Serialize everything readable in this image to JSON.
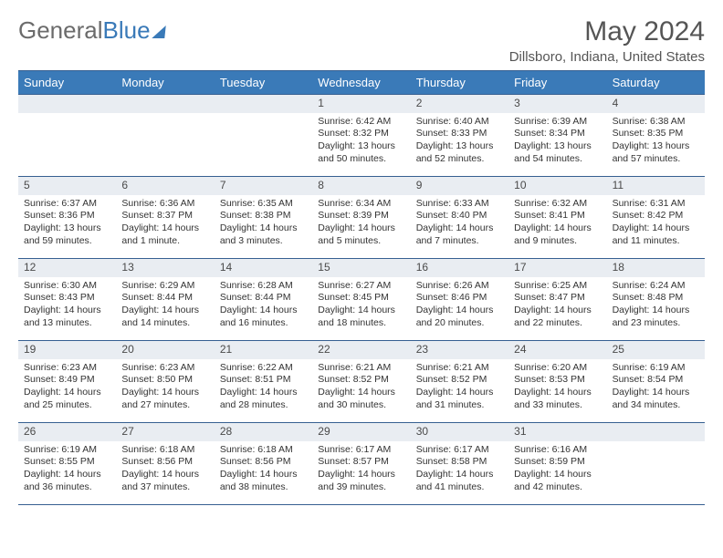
{
  "brand": {
    "part1": "General",
    "part2": "Blue"
  },
  "title": "May 2024",
  "location": "Dillsboro, Indiana, United States",
  "colors": {
    "header_bg": "#3a7ab8",
    "header_text": "#ffffff",
    "border": "#365f91",
    "daynum_bg": "#e9edf2",
    "text": "#333333",
    "background": "#ffffff"
  },
  "daynames": [
    "Sunday",
    "Monday",
    "Tuesday",
    "Wednesday",
    "Thursday",
    "Friday",
    "Saturday"
  ],
  "weeks": [
    [
      null,
      null,
      null,
      {
        "n": "1",
        "sr": "Sunrise: 6:42 AM",
        "ss": "Sunset: 8:32 PM",
        "dl": "Daylight: 13 hours and 50 minutes."
      },
      {
        "n": "2",
        "sr": "Sunrise: 6:40 AM",
        "ss": "Sunset: 8:33 PM",
        "dl": "Daylight: 13 hours and 52 minutes."
      },
      {
        "n": "3",
        "sr": "Sunrise: 6:39 AM",
        "ss": "Sunset: 8:34 PM",
        "dl": "Daylight: 13 hours and 54 minutes."
      },
      {
        "n": "4",
        "sr": "Sunrise: 6:38 AM",
        "ss": "Sunset: 8:35 PM",
        "dl": "Daylight: 13 hours and 57 minutes."
      }
    ],
    [
      {
        "n": "5",
        "sr": "Sunrise: 6:37 AM",
        "ss": "Sunset: 8:36 PM",
        "dl": "Daylight: 13 hours and 59 minutes."
      },
      {
        "n": "6",
        "sr": "Sunrise: 6:36 AM",
        "ss": "Sunset: 8:37 PM",
        "dl": "Daylight: 14 hours and 1 minute."
      },
      {
        "n": "7",
        "sr": "Sunrise: 6:35 AM",
        "ss": "Sunset: 8:38 PM",
        "dl": "Daylight: 14 hours and 3 minutes."
      },
      {
        "n": "8",
        "sr": "Sunrise: 6:34 AM",
        "ss": "Sunset: 8:39 PM",
        "dl": "Daylight: 14 hours and 5 minutes."
      },
      {
        "n": "9",
        "sr": "Sunrise: 6:33 AM",
        "ss": "Sunset: 8:40 PM",
        "dl": "Daylight: 14 hours and 7 minutes."
      },
      {
        "n": "10",
        "sr": "Sunrise: 6:32 AM",
        "ss": "Sunset: 8:41 PM",
        "dl": "Daylight: 14 hours and 9 minutes."
      },
      {
        "n": "11",
        "sr": "Sunrise: 6:31 AM",
        "ss": "Sunset: 8:42 PM",
        "dl": "Daylight: 14 hours and 11 minutes."
      }
    ],
    [
      {
        "n": "12",
        "sr": "Sunrise: 6:30 AM",
        "ss": "Sunset: 8:43 PM",
        "dl": "Daylight: 14 hours and 13 minutes."
      },
      {
        "n": "13",
        "sr": "Sunrise: 6:29 AM",
        "ss": "Sunset: 8:44 PM",
        "dl": "Daylight: 14 hours and 14 minutes."
      },
      {
        "n": "14",
        "sr": "Sunrise: 6:28 AM",
        "ss": "Sunset: 8:44 PM",
        "dl": "Daylight: 14 hours and 16 minutes."
      },
      {
        "n": "15",
        "sr": "Sunrise: 6:27 AM",
        "ss": "Sunset: 8:45 PM",
        "dl": "Daylight: 14 hours and 18 minutes."
      },
      {
        "n": "16",
        "sr": "Sunrise: 6:26 AM",
        "ss": "Sunset: 8:46 PM",
        "dl": "Daylight: 14 hours and 20 minutes."
      },
      {
        "n": "17",
        "sr": "Sunrise: 6:25 AM",
        "ss": "Sunset: 8:47 PM",
        "dl": "Daylight: 14 hours and 22 minutes."
      },
      {
        "n": "18",
        "sr": "Sunrise: 6:24 AM",
        "ss": "Sunset: 8:48 PM",
        "dl": "Daylight: 14 hours and 23 minutes."
      }
    ],
    [
      {
        "n": "19",
        "sr": "Sunrise: 6:23 AM",
        "ss": "Sunset: 8:49 PM",
        "dl": "Daylight: 14 hours and 25 minutes."
      },
      {
        "n": "20",
        "sr": "Sunrise: 6:23 AM",
        "ss": "Sunset: 8:50 PM",
        "dl": "Daylight: 14 hours and 27 minutes."
      },
      {
        "n": "21",
        "sr": "Sunrise: 6:22 AM",
        "ss": "Sunset: 8:51 PM",
        "dl": "Daylight: 14 hours and 28 minutes."
      },
      {
        "n": "22",
        "sr": "Sunrise: 6:21 AM",
        "ss": "Sunset: 8:52 PM",
        "dl": "Daylight: 14 hours and 30 minutes."
      },
      {
        "n": "23",
        "sr": "Sunrise: 6:21 AM",
        "ss": "Sunset: 8:52 PM",
        "dl": "Daylight: 14 hours and 31 minutes."
      },
      {
        "n": "24",
        "sr": "Sunrise: 6:20 AM",
        "ss": "Sunset: 8:53 PM",
        "dl": "Daylight: 14 hours and 33 minutes."
      },
      {
        "n": "25",
        "sr": "Sunrise: 6:19 AM",
        "ss": "Sunset: 8:54 PM",
        "dl": "Daylight: 14 hours and 34 minutes."
      }
    ],
    [
      {
        "n": "26",
        "sr": "Sunrise: 6:19 AM",
        "ss": "Sunset: 8:55 PM",
        "dl": "Daylight: 14 hours and 36 minutes."
      },
      {
        "n": "27",
        "sr": "Sunrise: 6:18 AM",
        "ss": "Sunset: 8:56 PM",
        "dl": "Daylight: 14 hours and 37 minutes."
      },
      {
        "n": "28",
        "sr": "Sunrise: 6:18 AM",
        "ss": "Sunset: 8:56 PM",
        "dl": "Daylight: 14 hours and 38 minutes."
      },
      {
        "n": "29",
        "sr": "Sunrise: 6:17 AM",
        "ss": "Sunset: 8:57 PM",
        "dl": "Daylight: 14 hours and 39 minutes."
      },
      {
        "n": "30",
        "sr": "Sunrise: 6:17 AM",
        "ss": "Sunset: 8:58 PM",
        "dl": "Daylight: 14 hours and 41 minutes."
      },
      {
        "n": "31",
        "sr": "Sunrise: 6:16 AM",
        "ss": "Sunset: 8:59 PM",
        "dl": "Daylight: 14 hours and 42 minutes."
      },
      null
    ]
  ]
}
